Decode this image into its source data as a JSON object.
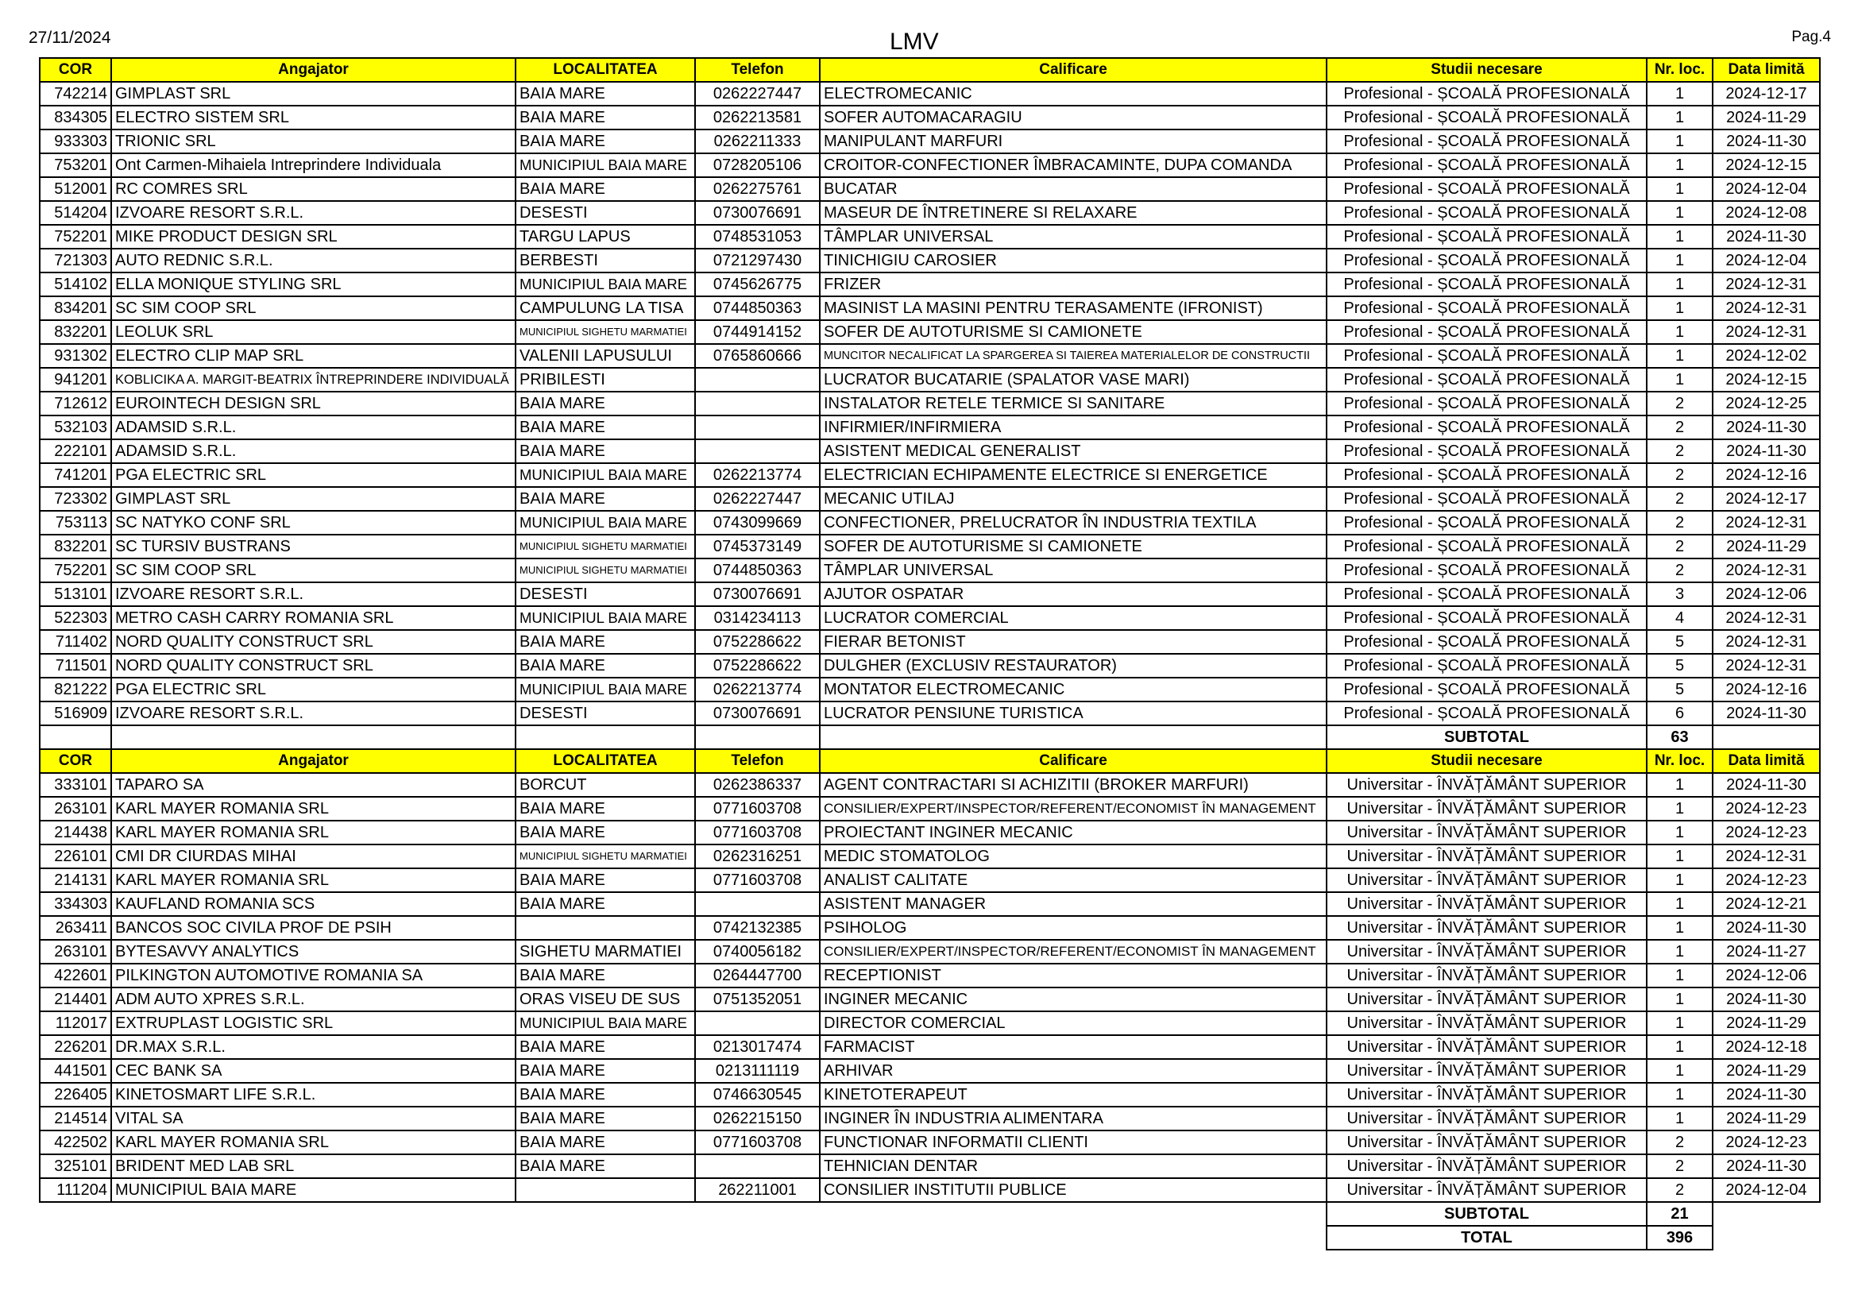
{
  "page": {
    "date": "27/11/2024",
    "title": "LMV",
    "page_label": "Pag.4"
  },
  "columns": [
    "COR",
    "Angajator",
    "LOCALITATEA",
    "Telefon",
    "Calificare",
    "Studii necesare",
    "Nr. loc.",
    "Data limită"
  ],
  "sections": [
    {
      "rows": [
        [
          "742214",
          "GIMPLAST SRL",
          "BAIA MARE",
          "0262227447",
          "ELECTROMECANIC",
          "Profesional - ȘCOALĂ PROFESIONALĂ",
          "1",
          "2024-12-17"
        ],
        [
          "834305",
          "ELECTRO SISTEM SRL",
          "BAIA MARE",
          "0262213581",
          "SOFER AUTOMACARAGIU",
          "Profesional - ȘCOALĂ PROFESIONALĂ",
          "1",
          "2024-11-29"
        ],
        [
          "933303",
          "TRIONIC SRL",
          "BAIA MARE",
          "0262211333",
          "MANIPULANT MARFURI",
          "Profesional - ȘCOALĂ PROFESIONALĂ",
          "1",
          "2024-11-30"
        ],
        [
          "753201",
          "Ont Carmen-Mihaiela Intreprindere Individuala",
          "MUNICIPIUL BAIA MARE",
          "0728205106",
          "CROITOR-CONFECTIONER ÎMBRACAMINTE, DUPA COMANDA",
          "Profesional - ȘCOALĂ PROFESIONALĂ",
          "1",
          "2024-12-15"
        ],
        [
          "512001",
          "RC COMRES SRL",
          "BAIA MARE",
          "0262275761",
          "BUCATAR",
          "Profesional - ȘCOALĂ PROFESIONALĂ",
          "1",
          "2024-12-04"
        ],
        [
          "514204",
          "IZVOARE RESORT S.R.L.",
          "DESESTI",
          "0730076691",
          "MASEUR DE ÎNTRETINERE SI RELAXARE",
          "Profesional - ȘCOALĂ PROFESIONALĂ",
          "1",
          "2024-12-08"
        ],
        [
          "752201",
          "MIKE PRODUCT DESIGN SRL",
          "TARGU LAPUS",
          "0748531053",
          "TÂMPLAR UNIVERSAL",
          "Profesional - ȘCOALĂ PROFESIONALĂ",
          "1",
          "2024-11-30"
        ],
        [
          "721303",
          "AUTO REDNIC S.R.L.",
          "BERBESTI",
          "0721297430",
          "TINICHIGIU CAROSIER",
          "Profesional - ȘCOALĂ PROFESIONALĂ",
          "1",
          "2024-12-04"
        ],
        [
          "514102",
          "ELLA MONIQUE STYLING SRL",
          "MUNICIPIUL BAIA MARE",
          "0745626775",
          "FRIZER",
          "Profesional - ȘCOALĂ PROFESIONALĂ",
          "1",
          "2024-12-31"
        ],
        [
          "834201",
          "SC SIM COOP SRL",
          "CAMPULUNG LA TISA",
          "0744850363",
          "MASINIST LA MASINI PENTRU TERASAMENTE (IFRONIST)",
          "Profesional - ȘCOALĂ PROFESIONALĂ",
          "1",
          "2024-12-31"
        ],
        [
          "832201",
          "LEOLUK SRL",
          "MUNICIPIUL SIGHETU MARMATIEI",
          "0744914152",
          "SOFER DE AUTOTURISME SI CAMIONETE",
          "Profesional - ȘCOALĂ PROFESIONALĂ",
          "1",
          "2024-12-31"
        ],
        [
          "931302",
          "ELECTRO CLIP MAP SRL",
          "VALENII LAPUSULUI",
          "0765860666",
          "MUNCITOR NECALIFICAT LA SPARGEREA SI TAIEREA MATERIALELOR DE CONSTRUCTII",
          "Profesional - ȘCOALĂ PROFESIONALĂ",
          "1",
          "2024-12-02"
        ],
        [
          "941201",
          "KOBLICIKA A. MARGIT-BEATRIX ÎNTREPRINDERE INDIVIDUALĂ",
          "PRIBILESTI",
          "",
          "LUCRATOR BUCATARIE (SPALATOR VASE MARI)",
          "Profesional - ȘCOALĂ PROFESIONALĂ",
          "1",
          "2024-12-15"
        ],
        [
          "712612",
          "EUROINTECH DESIGN SRL",
          "BAIA MARE",
          "",
          "INSTALATOR RETELE TERMICE SI SANITARE",
          "Profesional - ȘCOALĂ PROFESIONALĂ",
          "2",
          "2024-12-25"
        ],
        [
          "532103",
          "ADAMSID S.R.L.",
          "BAIA MARE",
          "",
          "INFIRMIER/INFIRMIERA",
          "Profesional - ȘCOALĂ PROFESIONALĂ",
          "2",
          "2024-11-30"
        ],
        [
          "222101",
          "ADAMSID S.R.L.",
          "BAIA MARE",
          "",
          "ASISTENT MEDICAL GENERALIST",
          "Profesional - ȘCOALĂ PROFESIONALĂ",
          "2",
          "2024-11-30"
        ],
        [
          "741201",
          "PGA ELECTRIC SRL",
          "MUNICIPIUL BAIA MARE",
          "0262213774",
          "ELECTRICIAN ECHIPAMENTE ELECTRICE SI ENERGETICE",
          "Profesional - ȘCOALĂ PROFESIONALĂ",
          "2",
          "2024-12-16"
        ],
        [
          "723302",
          "GIMPLAST SRL",
          "BAIA MARE",
          "0262227447",
          "MECANIC UTILAJ",
          "Profesional - ȘCOALĂ PROFESIONALĂ",
          "2",
          "2024-12-17"
        ],
        [
          "753113",
          "SC NATYKO CONF SRL",
          "MUNICIPIUL BAIA MARE",
          "0743099669",
          "CONFECTIONER, PRELUCRATOR ÎN INDUSTRIA TEXTILA",
          "Profesional - ȘCOALĂ PROFESIONALĂ",
          "2",
          "2024-12-31"
        ],
        [
          "832201",
          "SC TURSIV BUSTRANS",
          "MUNICIPIUL SIGHETU MARMATIEI",
          "0745373149",
          "SOFER DE AUTOTURISME SI CAMIONETE",
          "Profesional - ȘCOALĂ PROFESIONALĂ",
          "2",
          "2024-11-29"
        ],
        [
          "752201",
          "SC SIM COOP SRL",
          "MUNICIPIUL SIGHETU MARMATIEI",
          "0744850363",
          "TÂMPLAR UNIVERSAL",
          "Profesional - ȘCOALĂ PROFESIONALĂ",
          "2",
          "2024-12-31"
        ],
        [
          "513101",
          "IZVOARE RESORT S.R.L.",
          "DESESTI",
          "0730076691",
          "AJUTOR OSPATAR",
          "Profesional - ȘCOALĂ PROFESIONALĂ",
          "3",
          "2024-12-06"
        ],
        [
          "522303",
          "METRO CASH CARRY ROMANIA SRL",
          "MUNICIPIUL BAIA MARE",
          "0314234113",
          "LUCRATOR COMERCIAL",
          "Profesional - ȘCOALĂ PROFESIONALĂ",
          "4",
          "2024-12-31"
        ],
        [
          "711402",
          "NORD QUALITY CONSTRUCT SRL",
          "BAIA MARE",
          "0752286622",
          "FIERAR BETONIST",
          "Profesional - ȘCOALĂ PROFESIONALĂ",
          "5",
          "2024-12-31"
        ],
        [
          "711501",
          "NORD QUALITY CONSTRUCT SRL",
          "BAIA MARE",
          "0752286622",
          "DULGHER (EXCLUSIV RESTAURATOR)",
          "Profesional - ȘCOALĂ PROFESIONALĂ",
          "5",
          "2024-12-31"
        ],
        [
          "821222",
          "PGA ELECTRIC SRL",
          "MUNICIPIUL BAIA MARE",
          "0262213774",
          "MONTATOR ELECTROMECANIC",
          "Profesional - ȘCOALĂ PROFESIONALĂ",
          "5",
          "2024-12-16"
        ],
        [
          "516909",
          "IZVOARE RESORT S.R.L.",
          "DESESTI",
          "0730076691",
          "LUCRATOR PENSIUNE TURISTICA",
          "Profesional - ȘCOALĂ PROFESIONALĂ",
          "6",
          "2024-11-30"
        ]
      ],
      "subtotal_label": "SUBTOTAL",
      "subtotal": "63"
    },
    {
      "rows": [
        [
          "333101",
          "TAPARO SA",
          "BORCUT",
          "0262386337",
          "AGENT CONTRACTARI SI ACHIZITII (BROKER MARFURI)",
          "Universitar - ÎNVĂȚĂMÂNT SUPERIOR",
          "1",
          "2024-11-30"
        ],
        [
          "263101",
          "KARL MAYER ROMANIA SRL",
          "BAIA MARE",
          "0771603708",
          "CONSILIER/EXPERT/INSPECTOR/REFERENT/ECONOMIST ÎN MANAGEMENT",
          "Universitar - ÎNVĂȚĂMÂNT SUPERIOR",
          "1",
          "2024-12-23"
        ],
        [
          "214438",
          "KARL MAYER ROMANIA SRL",
          "BAIA MARE",
          "0771603708",
          "PROIECTANT INGINER MECANIC",
          "Universitar - ÎNVĂȚĂMÂNT SUPERIOR",
          "1",
          "2024-12-23"
        ],
        [
          "226101",
          "CMI DR CIURDAS MIHAI",
          "MUNICIPIUL SIGHETU MARMATIEI",
          "0262316251",
          "MEDIC STOMATOLOG",
          "Universitar - ÎNVĂȚĂMÂNT SUPERIOR",
          "1",
          "2024-12-31"
        ],
        [
          "214131",
          "KARL MAYER ROMANIA SRL",
          "BAIA MARE",
          "0771603708",
          "ANALIST CALITATE",
          "Universitar - ÎNVĂȚĂMÂNT SUPERIOR",
          "1",
          "2024-12-23"
        ],
        [
          "334303",
          "KAUFLAND ROMANIA SCS",
          "BAIA MARE",
          "",
          "ASISTENT MANAGER",
          "Universitar - ÎNVĂȚĂMÂNT SUPERIOR",
          "1",
          "2024-12-21"
        ],
        [
          "263411",
          "BANCOS SOC CIVILA PROF DE PSIH",
          "",
          "0742132385",
          "PSIHOLOG",
          "Universitar - ÎNVĂȚĂMÂNT SUPERIOR",
          "1",
          "2024-11-30"
        ],
        [
          "263101",
          "BYTESAVVY ANALYTICS",
          "SIGHETU MARMATIEI",
          "0740056182",
          "CONSILIER/EXPERT/INSPECTOR/REFERENT/ECONOMIST ÎN MANAGEMENT",
          "Universitar - ÎNVĂȚĂMÂNT SUPERIOR",
          "1",
          "2024-11-27"
        ],
        [
          "422601",
          "PILKINGTON AUTOMOTIVE ROMANIA SA",
          "BAIA MARE",
          "0264447700",
          "RECEPTIONIST",
          "Universitar - ÎNVĂȚĂMÂNT SUPERIOR",
          "1",
          "2024-12-06"
        ],
        [
          "214401",
          "ADM AUTO XPRES S.R.L.",
          "ORAS VISEU DE SUS",
          "0751352051",
          "INGINER MECANIC",
          "Universitar - ÎNVĂȚĂMÂNT SUPERIOR",
          "1",
          "2024-11-30"
        ],
        [
          "112017",
          "EXTRUPLAST LOGISTIC SRL",
          "MUNICIPIUL BAIA MARE",
          "",
          "DIRECTOR COMERCIAL",
          "Universitar - ÎNVĂȚĂMÂNT SUPERIOR",
          "1",
          "2024-11-29"
        ],
        [
          "226201",
          "DR.MAX S.R.L.",
          "BAIA MARE",
          "0213017474",
          "FARMACIST",
          "Universitar - ÎNVĂȚĂMÂNT SUPERIOR",
          "1",
          "2024-12-18"
        ],
        [
          "441501",
          "CEC BANK SA",
          "BAIA MARE",
          "0213111119",
          "ARHIVAR",
          "Universitar - ÎNVĂȚĂMÂNT SUPERIOR",
          "1",
          "2024-11-29"
        ],
        [
          "226405",
          "KINETOSMART LIFE S.R.L.",
          "BAIA MARE",
          "0746630545",
          "KINETOTERAPEUT",
          "Universitar - ÎNVĂȚĂMÂNT SUPERIOR",
          "1",
          "2024-11-30"
        ],
        [
          "214514",
          "VITAL SA",
          "BAIA MARE",
          "0262215150",
          "INGINER ÎN INDUSTRIA ALIMENTARA",
          "Universitar - ÎNVĂȚĂMÂNT SUPERIOR",
          "1",
          "2024-11-29"
        ],
        [
          "422502",
          "KARL MAYER ROMANIA SRL",
          "BAIA MARE",
          "0771603708",
          "FUNCTIONAR INFORMATII CLIENTI",
          "Universitar - ÎNVĂȚĂMÂNT SUPERIOR",
          "2",
          "2024-12-23"
        ],
        [
          "325101",
          "BRIDENT MED LAB SRL",
          "BAIA MARE",
          "",
          "TEHNICIAN DENTAR",
          "Universitar - ÎNVĂȚĂMÂNT SUPERIOR",
          "2",
          "2024-11-30"
        ],
        [
          "111204",
          "MUNICIPIUL BAIA MARE",
          "",
          "262211001",
          "CONSILIER INSTITUTII PUBLICE",
          "Universitar - ÎNVĂȚĂMÂNT SUPERIOR",
          "2",
          "2024-12-04"
        ]
      ],
      "subtotal_label": "SUBTOTAL",
      "subtotal": "21"
    }
  ],
  "total_label": "TOTAL",
  "total": "396",
  "colors": {
    "header_bg": "#ffff00",
    "border": "#000000"
  }
}
